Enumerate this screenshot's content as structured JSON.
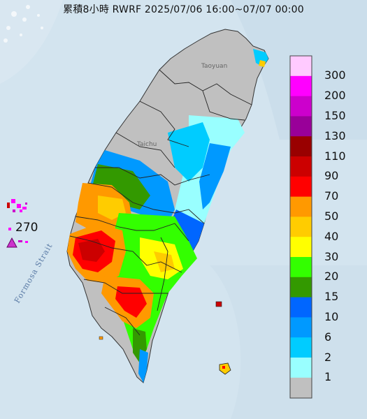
{
  "title": "累積8小時 RWRF 2025/07/06 16:00~07/07 00:00",
  "strait_label": "Formosa Strait",
  "max_value": "270",
  "city_labels": [
    "Taoyuan",
    "Taichu"
  ],
  "legend": [
    {
      "label": "300",
      "color": "#ffcaff"
    },
    {
      "label": "200",
      "color": "#ff00ff"
    },
    {
      "label": "150",
      "color": "#cc00cc"
    },
    {
      "label": "130",
      "color": "#990099"
    },
    {
      "label": "110",
      "color": "#990000"
    },
    {
      "label": "90",
      "color": "#cc0000"
    },
    {
      "label": "70",
      "color": "#ff0000"
    },
    {
      "label": "50",
      "color": "#ff9900"
    },
    {
      "label": "40",
      "color": "#ffcc00"
    },
    {
      "label": "30",
      "color": "#ffff00"
    },
    {
      "label": "20",
      "color": "#33ff00"
    },
    {
      "label": "15",
      "color": "#339900"
    },
    {
      "label": "10",
      "color": "#0066ff"
    },
    {
      "label": "6",
      "color": "#0099ff"
    },
    {
      "label": "2",
      "color": "#00ccff"
    },
    {
      "label": "1",
      "color": "#99ffff"
    },
    {
      "label": "",
      "color": "#c0c0c0"
    }
  ],
  "colors": {
    "sea": "#d3e4ef",
    "land_base": "#c0c0c0",
    "marker": "#cc33cc"
  }
}
